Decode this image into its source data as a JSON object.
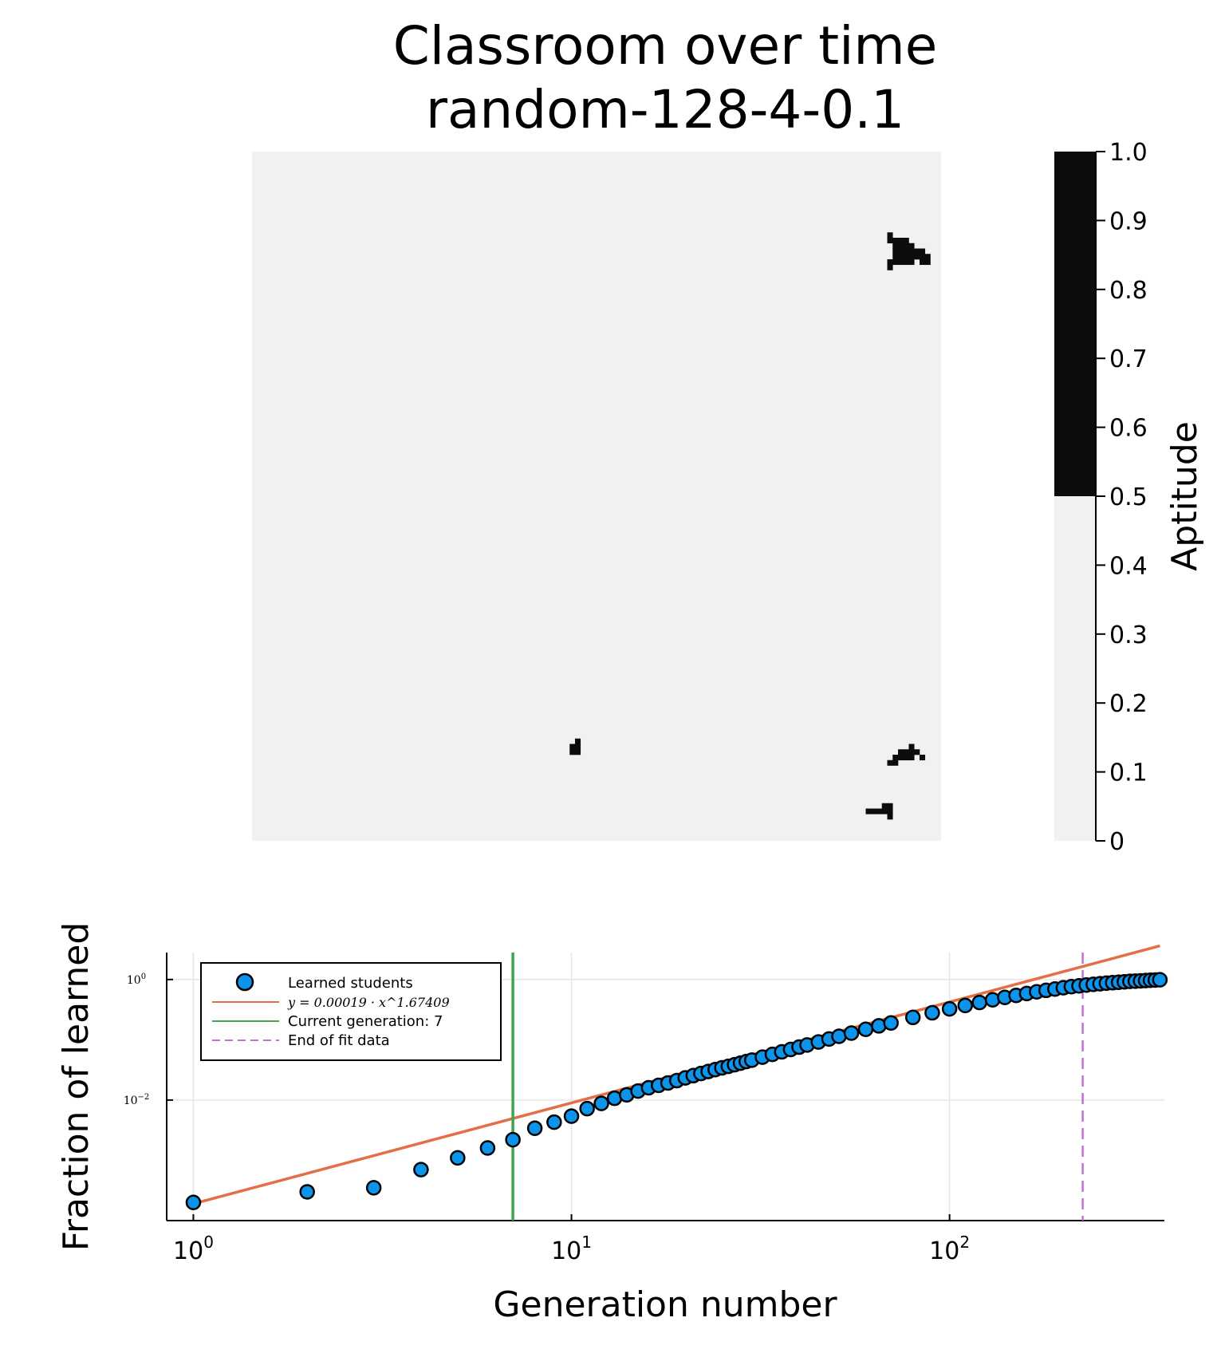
{
  "title": "Classroom over time",
  "subtitle": "random-128-4-0.1",
  "heatmap": {
    "colors": {
      "low": "#f1f1f1",
      "high": "#0c0c0c"
    },
    "colorbar": {
      "label": "Aptitude",
      "ticks": [
        "0",
        "0.1",
        "0.2",
        "0.3",
        "0.4",
        "0.5",
        "0.6",
        "0.7",
        "0.8",
        "0.9",
        "1.0"
      ],
      "threshold": 0.5
    }
  },
  "chart_data": [
    {
      "type": "heatmap",
      "grid_size": 128,
      "value_range": [
        0,
        1
      ],
      "note_cells": "cells with aptitude 1.0 (black); all others 0",
      "cells_high": [
        [
          118,
          15
        ],
        [
          118,
          16
        ],
        [
          118,
          20
        ],
        [
          118,
          21
        ],
        [
          119,
          16
        ],
        [
          119,
          17
        ],
        [
          119,
          18
        ],
        [
          119,
          19
        ],
        [
          119,
          20
        ],
        [
          120,
          16
        ],
        [
          120,
          17
        ],
        [
          120,
          18
        ],
        [
          120,
          19
        ],
        [
          120,
          20
        ],
        [
          121,
          16
        ],
        [
          121,
          17
        ],
        [
          121,
          18
        ],
        [
          121,
          19
        ],
        [
          121,
          20
        ],
        [
          122,
          17
        ],
        [
          122,
          18
        ],
        [
          122,
          19
        ],
        [
          122,
          20
        ],
        [
          123,
          18
        ],
        [
          123,
          19
        ],
        [
          124,
          18
        ],
        [
          124,
          19
        ],
        [
          124,
          20
        ],
        [
          125,
          19
        ],
        [
          125,
          20
        ],
        [
          59,
          110
        ],
        [
          59,
          111
        ],
        [
          60,
          109
        ],
        [
          60,
          110
        ],
        [
          60,
          111
        ],
        [
          118,
          113
        ],
        [
          119,
          113
        ],
        [
          119,
          112
        ],
        [
          120,
          111
        ],
        [
          120,
          112
        ],
        [
          121,
          111
        ],
        [
          121,
          112
        ],
        [
          122,
          110
        ],
        [
          122,
          111
        ],
        [
          122,
          112
        ],
        [
          123,
          111
        ],
        [
          124,
          112
        ],
        [
          114,
          122
        ],
        [
          115,
          122
        ],
        [
          116,
          122
        ],
        [
          117,
          122
        ],
        [
          117,
          121
        ],
        [
          118,
          122
        ],
        [
          118,
          123
        ],
        [
          118,
          121
        ]
      ]
    },
    {
      "type": "scatter",
      "title": "",
      "xlabel": "Generation number",
      "ylabel": "Fraction of learned",
      "xscale": "log10",
      "yscale": "log10",
      "xlim": [
        0.85,
        370
      ],
      "ylim": [
        0.0001,
        2.8
      ],
      "x_ticks": [
        1,
        10,
        100
      ],
      "x_tick_labels": [
        "10^0",
        "10^1",
        "10^2"
      ],
      "y_ticks": [
        0.01,
        1
      ],
      "y_tick_labels": [
        "10^-2",
        "10^0"
      ],
      "grid": true,
      "legend_position": "top-left",
      "series": [
        {
          "name": "Learned students",
          "kind": "points",
          "color": "#0b94e9",
          "x": [
            1,
            2,
            3,
            4,
            5,
            6,
            7,
            8,
            9,
            10,
            11,
            12,
            13,
            14,
            15,
            16,
            17,
            18,
            19,
            20,
            21,
            22,
            23,
            24,
            25,
            26,
            27,
            28,
            29,
            30,
            32,
            34,
            36,
            38,
            40,
            42,
            45,
            48,
            51,
            55,
            60,
            65,
            70,
            80,
            90,
            100,
            110,
            120,
            130,
            140,
            150,
            160,
            170,
            180,
            190,
            200,
            210,
            220,
            230,
            240,
            250,
            260,
            270,
            280,
            290,
            300,
            310,
            320,
            330,
            340,
            350,
            360
          ],
          "y": [
            0.0002,
            0.0003,
            0.00035,
            0.0007,
            0.0011,
            0.0016,
            0.0022,
            0.0034,
            0.0043,
            0.0054,
            0.0072,
            0.0088,
            0.0107,
            0.0122,
            0.0141,
            0.016,
            0.0175,
            0.0192,
            0.021,
            0.0233,
            0.0254,
            0.0276,
            0.0298,
            0.032,
            0.0342,
            0.0363,
            0.0385,
            0.041,
            0.0435,
            0.046,
            0.0515,
            0.0572,
            0.063,
            0.069,
            0.0755,
            0.082,
            0.092,
            0.103,
            0.114,
            0.129,
            0.149,
            0.17,
            0.19,
            0.235,
            0.28,
            0.325,
            0.37,
            0.415,
            0.46,
            0.505,
            0.545,
            0.585,
            0.625,
            0.66,
            0.695,
            0.73,
            0.76,
            0.785,
            0.81,
            0.83,
            0.85,
            0.87,
            0.885,
            0.9,
            0.915,
            0.93,
            0.94,
            0.95,
            0.96,
            0.97,
            0.98,
            0.99
          ]
        },
        {
          "name": "y = 0.00019 · x^1.67409",
          "kind": "power_fit",
          "color": "#e26f46",
          "coef": 0.00019,
          "exponent": 1.67409,
          "x_range": [
            1,
            360
          ]
        },
        {
          "name": "Current generation: 7",
          "kind": "vline",
          "color": "#3ea44e",
          "x": 7
        },
        {
          "name": "End of fit data",
          "kind": "vline_dashed",
          "color": "#c271d2",
          "x": 225
        }
      ]
    }
  ]
}
